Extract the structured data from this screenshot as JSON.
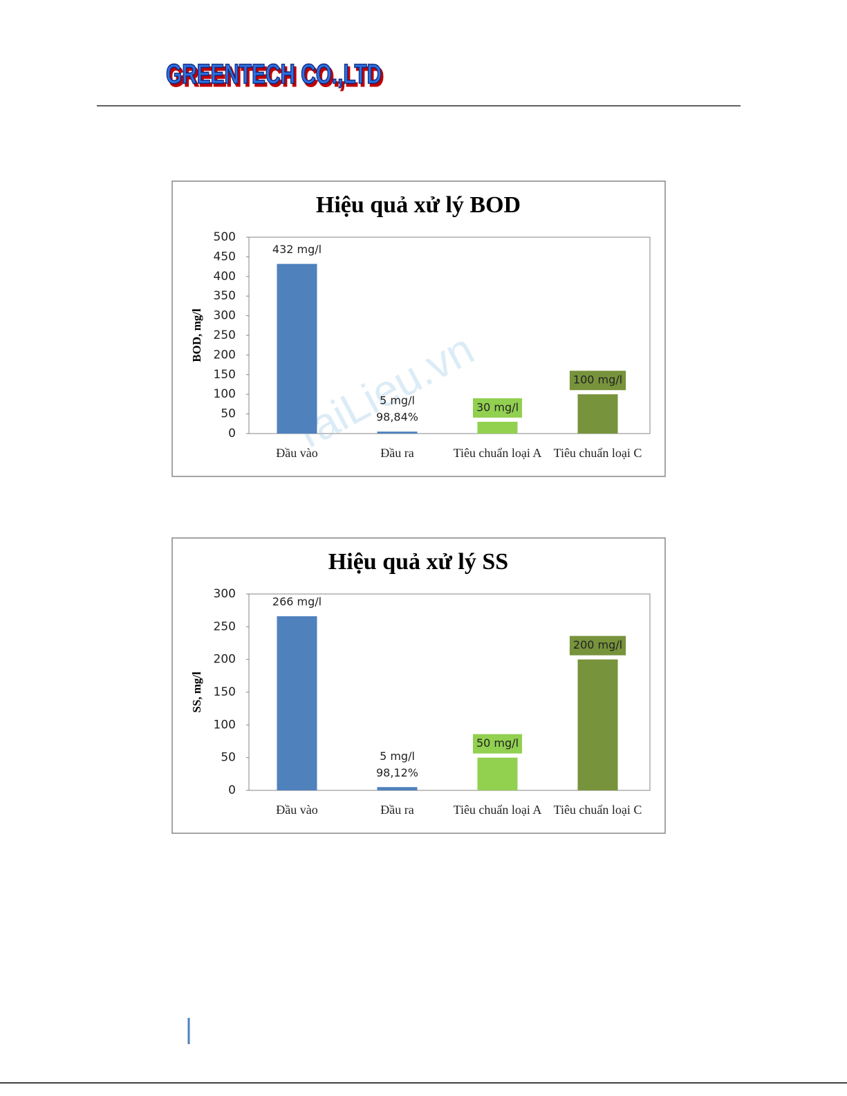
{
  "header": {
    "title": "GREENTECH CO.,LTD"
  },
  "watermark": "TaiLieu.vn",
  "chart_data": [
    {
      "type": "bar",
      "title": "Hiệu quả xử lý BOD",
      "y_label": "BOD, mg/l",
      "categories": [
        "Đầu vào",
        "Đầu ra",
        "Tiêu chuẩn loại A",
        "Tiêu chuẩn loại C"
      ],
      "values": [
        432,
        5,
        30,
        100
      ],
      "value_labels": [
        "432 mg/l",
        "5 mg/l",
        "30 mg/l",
        "100 mg/l"
      ],
      "value_notes": [
        null,
        "98,84%",
        null,
        null
      ],
      "boxed_labels": [
        false,
        false,
        true,
        true
      ],
      "colors": [
        "#4f81bd",
        "#4f81bd",
        "#92d050",
        "#77933c"
      ],
      "ylim": [
        0,
        500
      ],
      "yticks": [
        0,
        50,
        100,
        150,
        200,
        250,
        300,
        350,
        400,
        450,
        500
      ]
    },
    {
      "type": "bar",
      "title": "Hiệu quả xử lý SS",
      "y_label": "SS, mg/l",
      "categories": [
        "Đầu vào",
        "Đầu ra",
        "Tiêu chuẩn loại A",
        "Tiêu chuẩn loại C"
      ],
      "values": [
        266,
        5,
        50,
        200
      ],
      "value_labels": [
        "266 mg/l",
        "5 mg/l",
        "50 mg/l",
        "200 mg/l"
      ],
      "value_notes": [
        null,
        "98,12%",
        null,
        null
      ],
      "boxed_labels": [
        false,
        false,
        true,
        true
      ],
      "colors": [
        "#4f81bd",
        "#4f81bd",
        "#92d050",
        "#77933c"
      ],
      "ylim": [
        0,
        300
      ],
      "yticks": [
        0,
        50,
        100,
        150,
        200,
        250,
        300
      ]
    }
  ]
}
